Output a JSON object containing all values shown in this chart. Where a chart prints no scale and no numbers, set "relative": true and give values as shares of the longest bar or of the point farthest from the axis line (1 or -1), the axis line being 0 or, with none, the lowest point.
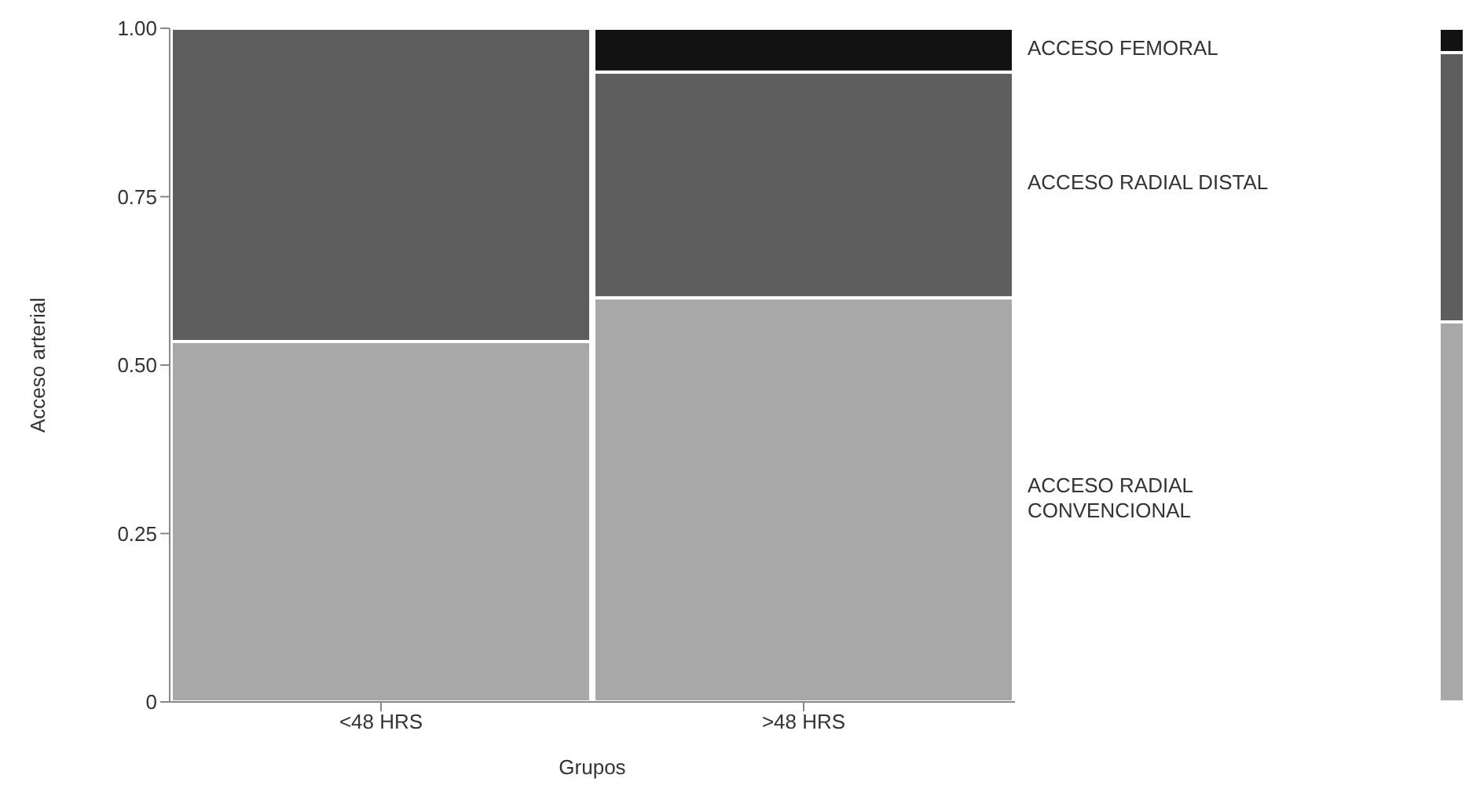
{
  "chart_data": [
    {
      "type": "bar",
      "stacked": true,
      "xlabel": "Grupos",
      "ylabel": "Acceso arterial",
      "categories": [
        "<48 HRS",
        ">48 HRS"
      ],
      "series": [
        {
          "name": "ACCESO RADIAL CONVENCIONAL",
          "color": "#a8a8a8",
          "values": [
            0.535,
            0.6
          ]
        },
        {
          "name": "ACCESO RADIAL DISTAL",
          "color": "#5e5e5e",
          "values": [
            0.465,
            0.335
          ]
        },
        {
          "name": "ACCESO FEMORAL",
          "color": "#121212",
          "values": [
            0,
            0.065
          ]
        }
      ],
      "ylim": [
        0,
        1
      ],
      "yticks": [
        0,
        {
          "value": 0.25,
          "label": "0.25"
        },
        {
          "value": 0.5,
          "label": "0.50"
        },
        {
          "value": 0.75,
          "label": "0.75"
        },
        {
          "value": 1,
          "label": "1.00"
        }
      ],
      "grid": false,
      "legend": false
    },
    {
      "type": "bar",
      "stacked": true,
      "relative": true,
      "categories": [
        null
      ],
      "series": [
        {
          "color": "#a8a8a8",
          "values": [
            0.564
          ]
        },
        {
          "color": "#5e5e5e",
          "values": [
            0.4
          ]
        },
        {
          "color": "#121212",
          "values": [
            0.036
          ]
        }
      ],
      "legend": false
    }
  ]
}
